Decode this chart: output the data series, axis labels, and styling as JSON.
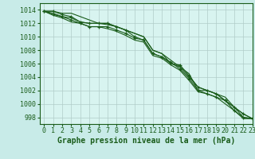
{
  "title": "Graphe pression niveau de la mer (hPa)",
  "background_color": "#c8ebe8",
  "plot_bg_color": "#d8f4f0",
  "grid_color": "#b0ccc8",
  "line_color": "#1a5c1a",
  "marker_color": "#1a5c1a",
  "xlim": [
    -0.5,
    23
  ],
  "ylim": [
    997,
    1015
  ],
  "yticks": [
    998,
    1000,
    1002,
    1004,
    1006,
    1008,
    1010,
    1012,
    1014
  ],
  "xticks": [
    0,
    1,
    2,
    3,
    4,
    5,
    6,
    7,
    8,
    9,
    10,
    11,
    12,
    13,
    14,
    15,
    16,
    17,
    18,
    19,
    20,
    21,
    22,
    23
  ],
  "series": [
    [
      1013.8,
      1013.8,
      1013.5,
      1013.5,
      1013.0,
      1012.5,
      1012.0,
      1012.0,
      1011.5,
      1011.0,
      1010.5,
      1010.0,
      1008.0,
      1007.5,
      1006.0,
      1005.5,
      1004.5,
      1002.0,
      1002.0,
      1001.5,
      1001.0,
      999.5,
      998.5,
      997.8
    ],
    [
      1013.8,
      1013.8,
      1013.3,
      1013.0,
      1012.2,
      1012.0,
      1012.0,
      1012.0,
      1011.5,
      1011.0,
      1010.0,
      1009.5,
      1007.5,
      1007.0,
      1006.0,
      1005.8,
      1004.2,
      1002.5,
      1002.0,
      1001.5,
      1000.5,
      999.5,
      998.5,
      997.8
    ],
    [
      1013.8,
      1013.5,
      1013.0,
      1012.8,
      1012.2,
      1012.0,
      1012.0,
      1011.8,
      1011.5,
      1011.0,
      1010.5,
      1010.0,
      1008.0,
      1007.5,
      1006.5,
      1005.5,
      1004.0,
      1002.5,
      1002.0,
      1001.5,
      1000.5,
      999.5,
      998.0,
      997.8
    ],
    [
      1013.8,
      1013.3,
      1013.0,
      1012.5,
      1012.0,
      1011.5,
      1011.5,
      1011.5,
      1011.0,
      1010.5,
      1009.8,
      1009.5,
      1007.5,
      1007.0,
      1006.2,
      1005.2,
      1003.8,
      1002.0,
      1001.5,
      1001.0,
      1000.5,
      999.0,
      998.0,
      997.8
    ],
    [
      1013.8,
      1013.2,
      1012.8,
      1012.2,
      1012.0,
      1011.5,
      1011.5,
      1011.2,
      1010.8,
      1010.2,
      1009.5,
      1009.2,
      1007.2,
      1006.8,
      1005.8,
      1005.0,
      1003.5,
      1001.8,
      1001.5,
      1001.0,
      1000.0,
      999.0,
      997.8,
      997.8
    ]
  ],
  "marked_series": [
    1,
    3
  ],
  "xlabel_fontsize": 7,
  "tick_fontsize": 6
}
